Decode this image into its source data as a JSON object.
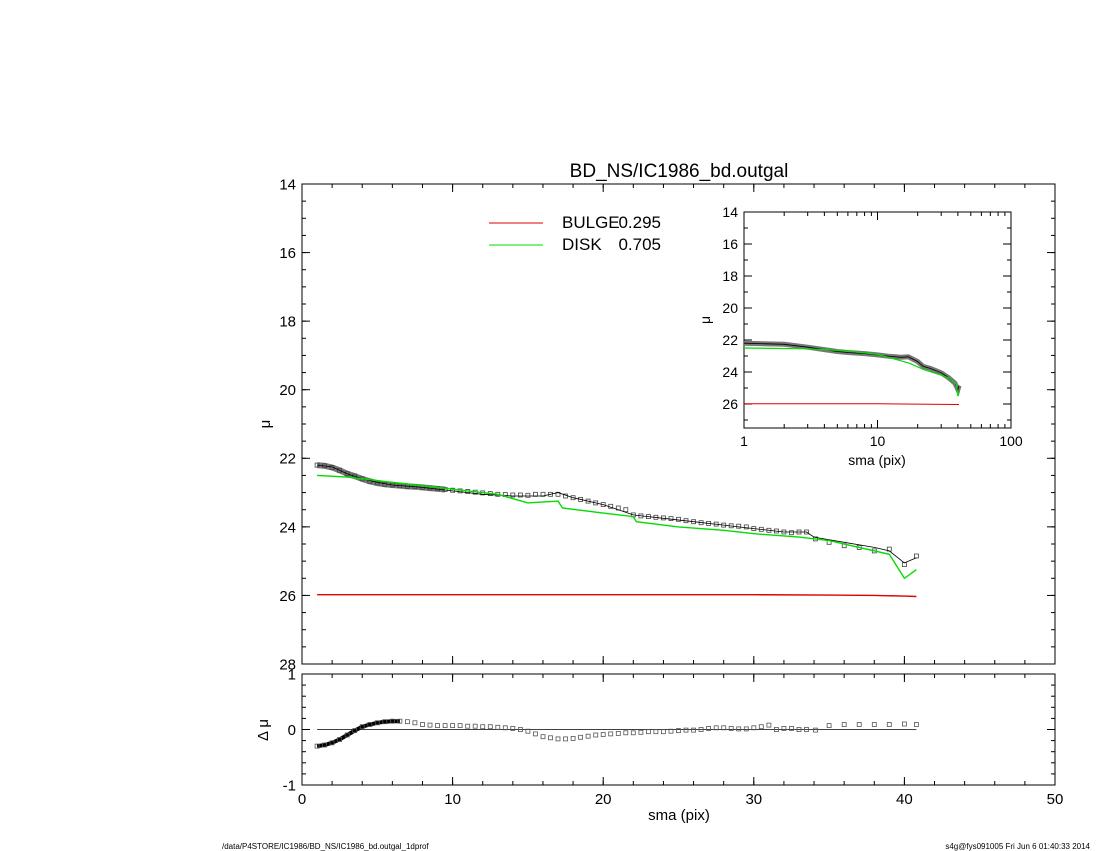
{
  "title": "BD_NS/IC1986_bd.outgal",
  "footer": {
    "left": "/data/P4STORE/IC1986/BD_NS/IC1986_bd.outgal_1dprof",
    "right": "s4g@fys091005  Fri Jun  6 01:40:33 2014"
  },
  "colors": {
    "bulge": "#dd0000",
    "disk": "#00dd00",
    "data": "#555555",
    "axes": "#000000"
  },
  "chart_data": [
    {
      "id": "main",
      "type": "line",
      "xlabel": "",
      "ylabel": "μ",
      "xlim": [
        0,
        50
      ],
      "ylim": [
        28,
        14
      ],
      "y_reversed": true,
      "yticks": [
        "14",
        "16",
        "18",
        "20",
        "22",
        "24",
        "26",
        "28"
      ],
      "legend_placement": "top-center",
      "legend": [
        {
          "name": "BULGE",
          "value": "0.295",
          "color": "#dd0000"
        },
        {
          "name": "DISK",
          "value": "0.705",
          "color": "#00dd00"
        }
      ],
      "series": [
        {
          "name": "BULGE",
          "color": "#dd0000",
          "x": [
            1,
            10,
            20,
            30,
            35,
            38,
            40,
            40.8
          ],
          "y": [
            25.98,
            25.98,
            25.98,
            25.98,
            25.99,
            26.0,
            26.02,
            26.03
          ]
        },
        {
          "name": "DISK",
          "color": "#00dd00",
          "x": [
            1,
            3,
            5,
            7,
            9,
            11,
            13,
            15,
            17,
            17.3,
            20,
            22,
            22.2,
            25,
            28,
            30,
            33,
            35,
            37,
            39,
            40,
            40.8
          ],
          "y": [
            22.5,
            22.55,
            22.65,
            22.75,
            22.85,
            22.95,
            23.05,
            23.3,
            23.25,
            23.45,
            23.6,
            23.7,
            23.85,
            24.0,
            24.1,
            24.2,
            24.3,
            24.4,
            24.6,
            24.8,
            25.5,
            25.25
          ]
        },
        {
          "name": "model",
          "color": "#000000",
          "x": [
            1,
            2,
            3,
            4,
            5,
            6,
            8,
            10,
            12,
            14,
            16,
            17,
            18,
            20,
            22,
            24,
            26,
            28,
            30,
            32,
            33.5,
            34,
            36,
            38,
            39,
            40,
            40.8
          ],
          "y": [
            22.2,
            22.25,
            22.45,
            22.6,
            22.7,
            22.78,
            22.85,
            22.95,
            23.05,
            23.1,
            23.1,
            23.0,
            23.15,
            23.35,
            23.65,
            23.75,
            23.85,
            23.95,
            24.05,
            24.15,
            24.15,
            24.3,
            24.45,
            24.6,
            24.7,
            25.05,
            24.9
          ]
        },
        {
          "name": "data",
          "color": "#555555",
          "x": [
            1,
            1.5,
            2,
            2.5,
            3,
            3.5,
            4,
            4.5,
            5,
            5.5,
            6,
            6.5,
            7,
            7.5,
            8,
            8.5,
            9,
            9.5,
            10,
            10.5,
            11,
            11.5,
            12,
            12.5,
            13,
            13.5,
            14,
            14.5,
            15,
            15.5,
            16,
            16.5,
            17,
            17.5,
            18,
            18.5,
            19,
            19.5,
            20,
            20.5,
            21,
            21.5,
            22,
            22.5,
            23,
            23.5,
            24,
            24.5,
            25,
            25.5,
            26,
            26.5,
            27,
            27.5,
            28,
            28.5,
            29,
            29.5,
            30,
            30.5,
            31,
            31.5,
            32,
            32.5,
            33,
            33.5,
            34.1,
            35,
            36,
            37,
            38,
            39,
            40,
            40.8
          ],
          "y": [
            22.2,
            22.22,
            22.27,
            22.35,
            22.45,
            22.52,
            22.6,
            22.67,
            22.72,
            22.76,
            22.78,
            22.8,
            22.82,
            22.83,
            22.85,
            22.87,
            22.89,
            22.91,
            22.93,
            22.95,
            22.97,
            22.99,
            23.01,
            23.03,
            23.05,
            23.06,
            23.07,
            23.07,
            23.08,
            23.05,
            23.05,
            23.05,
            23.05,
            23.1,
            23.15,
            23.2,
            23.25,
            23.3,
            23.35,
            23.4,
            23.45,
            23.5,
            23.65,
            23.68,
            23.7,
            23.72,
            23.74,
            23.76,
            23.78,
            23.82,
            23.85,
            23.88,
            23.9,
            23.92,
            23.95,
            23.97,
            23.98,
            24.0,
            24.05,
            24.07,
            24.1,
            24.12,
            24.15,
            24.17,
            24.15,
            24.15,
            24.35,
            24.45,
            24.55,
            24.6,
            24.7,
            24.65,
            25.1,
            24.85
          ]
        }
      ]
    },
    {
      "id": "residual",
      "type": "scatter",
      "xlabel": "sma (pix)",
      "ylabel": "Δ μ",
      "xlim": [
        0,
        50
      ],
      "ylim": [
        -1,
        1
      ],
      "xticks": [
        "0",
        "10",
        "20",
        "30",
        "40",
        "50"
      ],
      "yticks": [
        "-1",
        "0",
        "1"
      ],
      "series": [
        {
          "name": "residual",
          "color": "#555555",
          "x": [
            1,
            1.5,
            2,
            2.5,
            3,
            3.5,
            4,
            4.5,
            5,
            5.5,
            6,
            6.5,
            7,
            7.5,
            8,
            8.5,
            9,
            9.5,
            10,
            10.5,
            11,
            11.5,
            12,
            12.5,
            13,
            13.5,
            14,
            14.5,
            15,
            15.5,
            16,
            16.5,
            17,
            17.5,
            18,
            18.5,
            19,
            19.5,
            20,
            20.5,
            21,
            21.5,
            22,
            22.5,
            23,
            23.5,
            24,
            24.5,
            25,
            25.5,
            26,
            26.5,
            27,
            27.5,
            28,
            28.5,
            29,
            29.5,
            30,
            30.5,
            31,
            31.5,
            32,
            32.5,
            33,
            33.5,
            34.1,
            35,
            36,
            37,
            38,
            39,
            40,
            40.8
          ],
          "y": [
            -0.3,
            -0.28,
            -0.24,
            -0.18,
            -0.1,
            -0.02,
            0.05,
            0.09,
            0.12,
            0.14,
            0.15,
            0.15,
            0.14,
            0.12,
            0.09,
            0.08,
            0.07,
            0.07,
            0.07,
            0.07,
            0.06,
            0.06,
            0.05,
            0.05,
            0.04,
            0.03,
            0.02,
            0.0,
            -0.03,
            -0.08,
            -0.13,
            -0.15,
            -0.17,
            -0.17,
            -0.16,
            -0.14,
            -0.12,
            -0.1,
            -0.09,
            -0.08,
            -0.07,
            -0.06,
            -0.06,
            -0.05,
            -0.04,
            -0.04,
            -0.04,
            -0.03,
            -0.02,
            -0.01,
            -0.01,
            0.0,
            0.02,
            0.03,
            0.03,
            0.02,
            0.01,
            0.01,
            0.03,
            0.05,
            0.08,
            0.0,
            0.02,
            0.02,
            0.0,
            0.0,
            -0.01,
            0.07,
            0.09,
            0.09,
            0.09,
            0.09,
            0.1,
            0.09
          ]
        },
        {
          "name": "zero",
          "color": "#000000",
          "x": [
            1,
            40.8
          ],
          "y": [
            0,
            0
          ]
        }
      ]
    },
    {
      "id": "inset",
      "type": "line",
      "xlabel": "sma (pix)",
      "ylabel": "μ",
      "xscale": "log",
      "xlim": [
        1,
        100
      ],
      "ylim": [
        27.5,
        14
      ],
      "y_reversed": true,
      "xticks": [
        "1",
        "10",
        "100"
      ],
      "yticks": [
        "14",
        "16",
        "18",
        "20",
        "22",
        "24",
        "26"
      ],
      "series": [
        {
          "name": "BULGE",
          "color": "#dd0000",
          "x": [
            1,
            10,
            40.8
          ],
          "y": [
            25.98,
            25.98,
            26.03
          ]
        },
        {
          "name": "DISK",
          "color": "#00dd00",
          "x": [
            1,
            3,
            5,
            7,
            10,
            15,
            17.3,
            22.2,
            30,
            35,
            39,
            40,
            40.8
          ],
          "y": [
            22.5,
            22.55,
            22.65,
            22.75,
            22.9,
            23.3,
            23.45,
            23.85,
            24.2,
            24.4,
            24.8,
            25.5,
            25.25
          ]
        },
        {
          "name": "data",
          "color": "#555555",
          "x": [
            1,
            2,
            3,
            4,
            5,
            6,
            8,
            10,
            12,
            15,
            17,
            20,
            22,
            25,
            30,
            34,
            38,
            40,
            40.8
          ],
          "y": [
            22.2,
            22.27,
            22.45,
            22.6,
            22.72,
            22.78,
            22.85,
            22.93,
            23.01,
            23.08,
            23.05,
            23.35,
            23.65,
            23.78,
            24.05,
            24.35,
            24.7,
            25.1,
            24.85
          ]
        }
      ]
    }
  ]
}
